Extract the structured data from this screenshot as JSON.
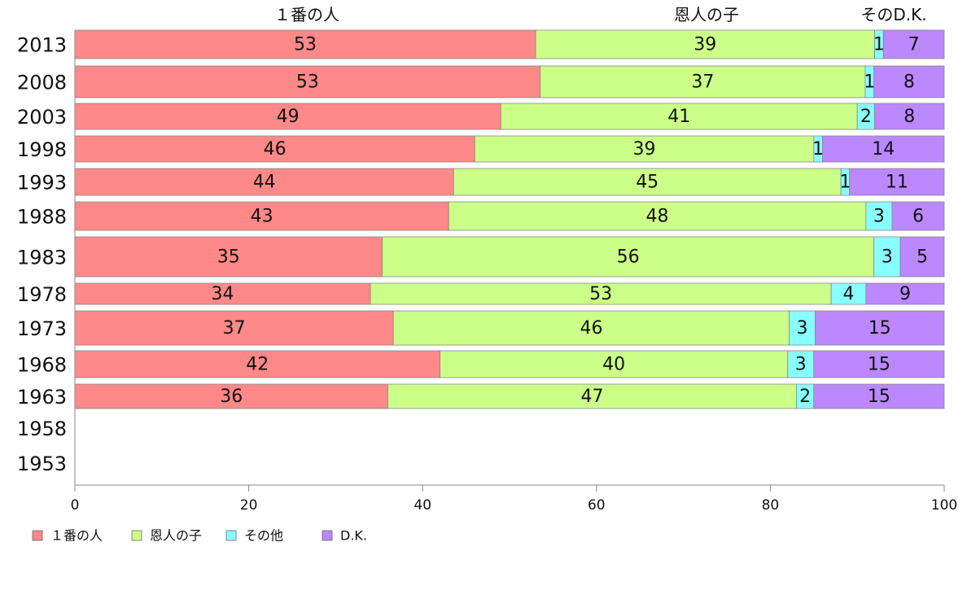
{
  "chart_data": {
    "type": "bar",
    "orientation": "horizontal",
    "stacked": true,
    "categories": [
      "2013",
      "2008",
      "2003",
      "1998",
      "1993",
      "1988",
      "1983",
      "1978",
      "1973",
      "1968",
      "1963",
      "1958",
      "1953"
    ],
    "series": [
      {
        "name": "１番の人",
        "color": "#ff8888",
        "values": [
          53,
          53,
          49,
          46,
          44,
          43,
          35,
          34,
          37,
          42,
          36,
          null,
          null
        ]
      },
      {
        "name": "恩人の子",
        "color": "#ccff88",
        "values": [
          39,
          37,
          41,
          39,
          45,
          48,
          56,
          53,
          46,
          40,
          47,
          null,
          null
        ]
      },
      {
        "name": "その他",
        "color": "#88ffff",
        "values": [
          1,
          1,
          2,
          1,
          1,
          3,
          3,
          4,
          3,
          3,
          2,
          null,
          null
        ]
      },
      {
        "name": "D.K.",
        "color": "#bb88ff",
        "values": [
          7,
          8,
          8,
          14,
          11,
          6,
          5,
          9,
          15,
          15,
          15,
          null,
          null
        ]
      }
    ],
    "top_labels": [
      "１番の人",
      "恩人の子",
      "そのD.K."
    ],
    "xlim": [
      0,
      100
    ],
    "xticks": [
      0,
      20,
      40,
      60,
      80,
      100
    ],
    "legend_position": "bottom-left",
    "grid": false
  }
}
